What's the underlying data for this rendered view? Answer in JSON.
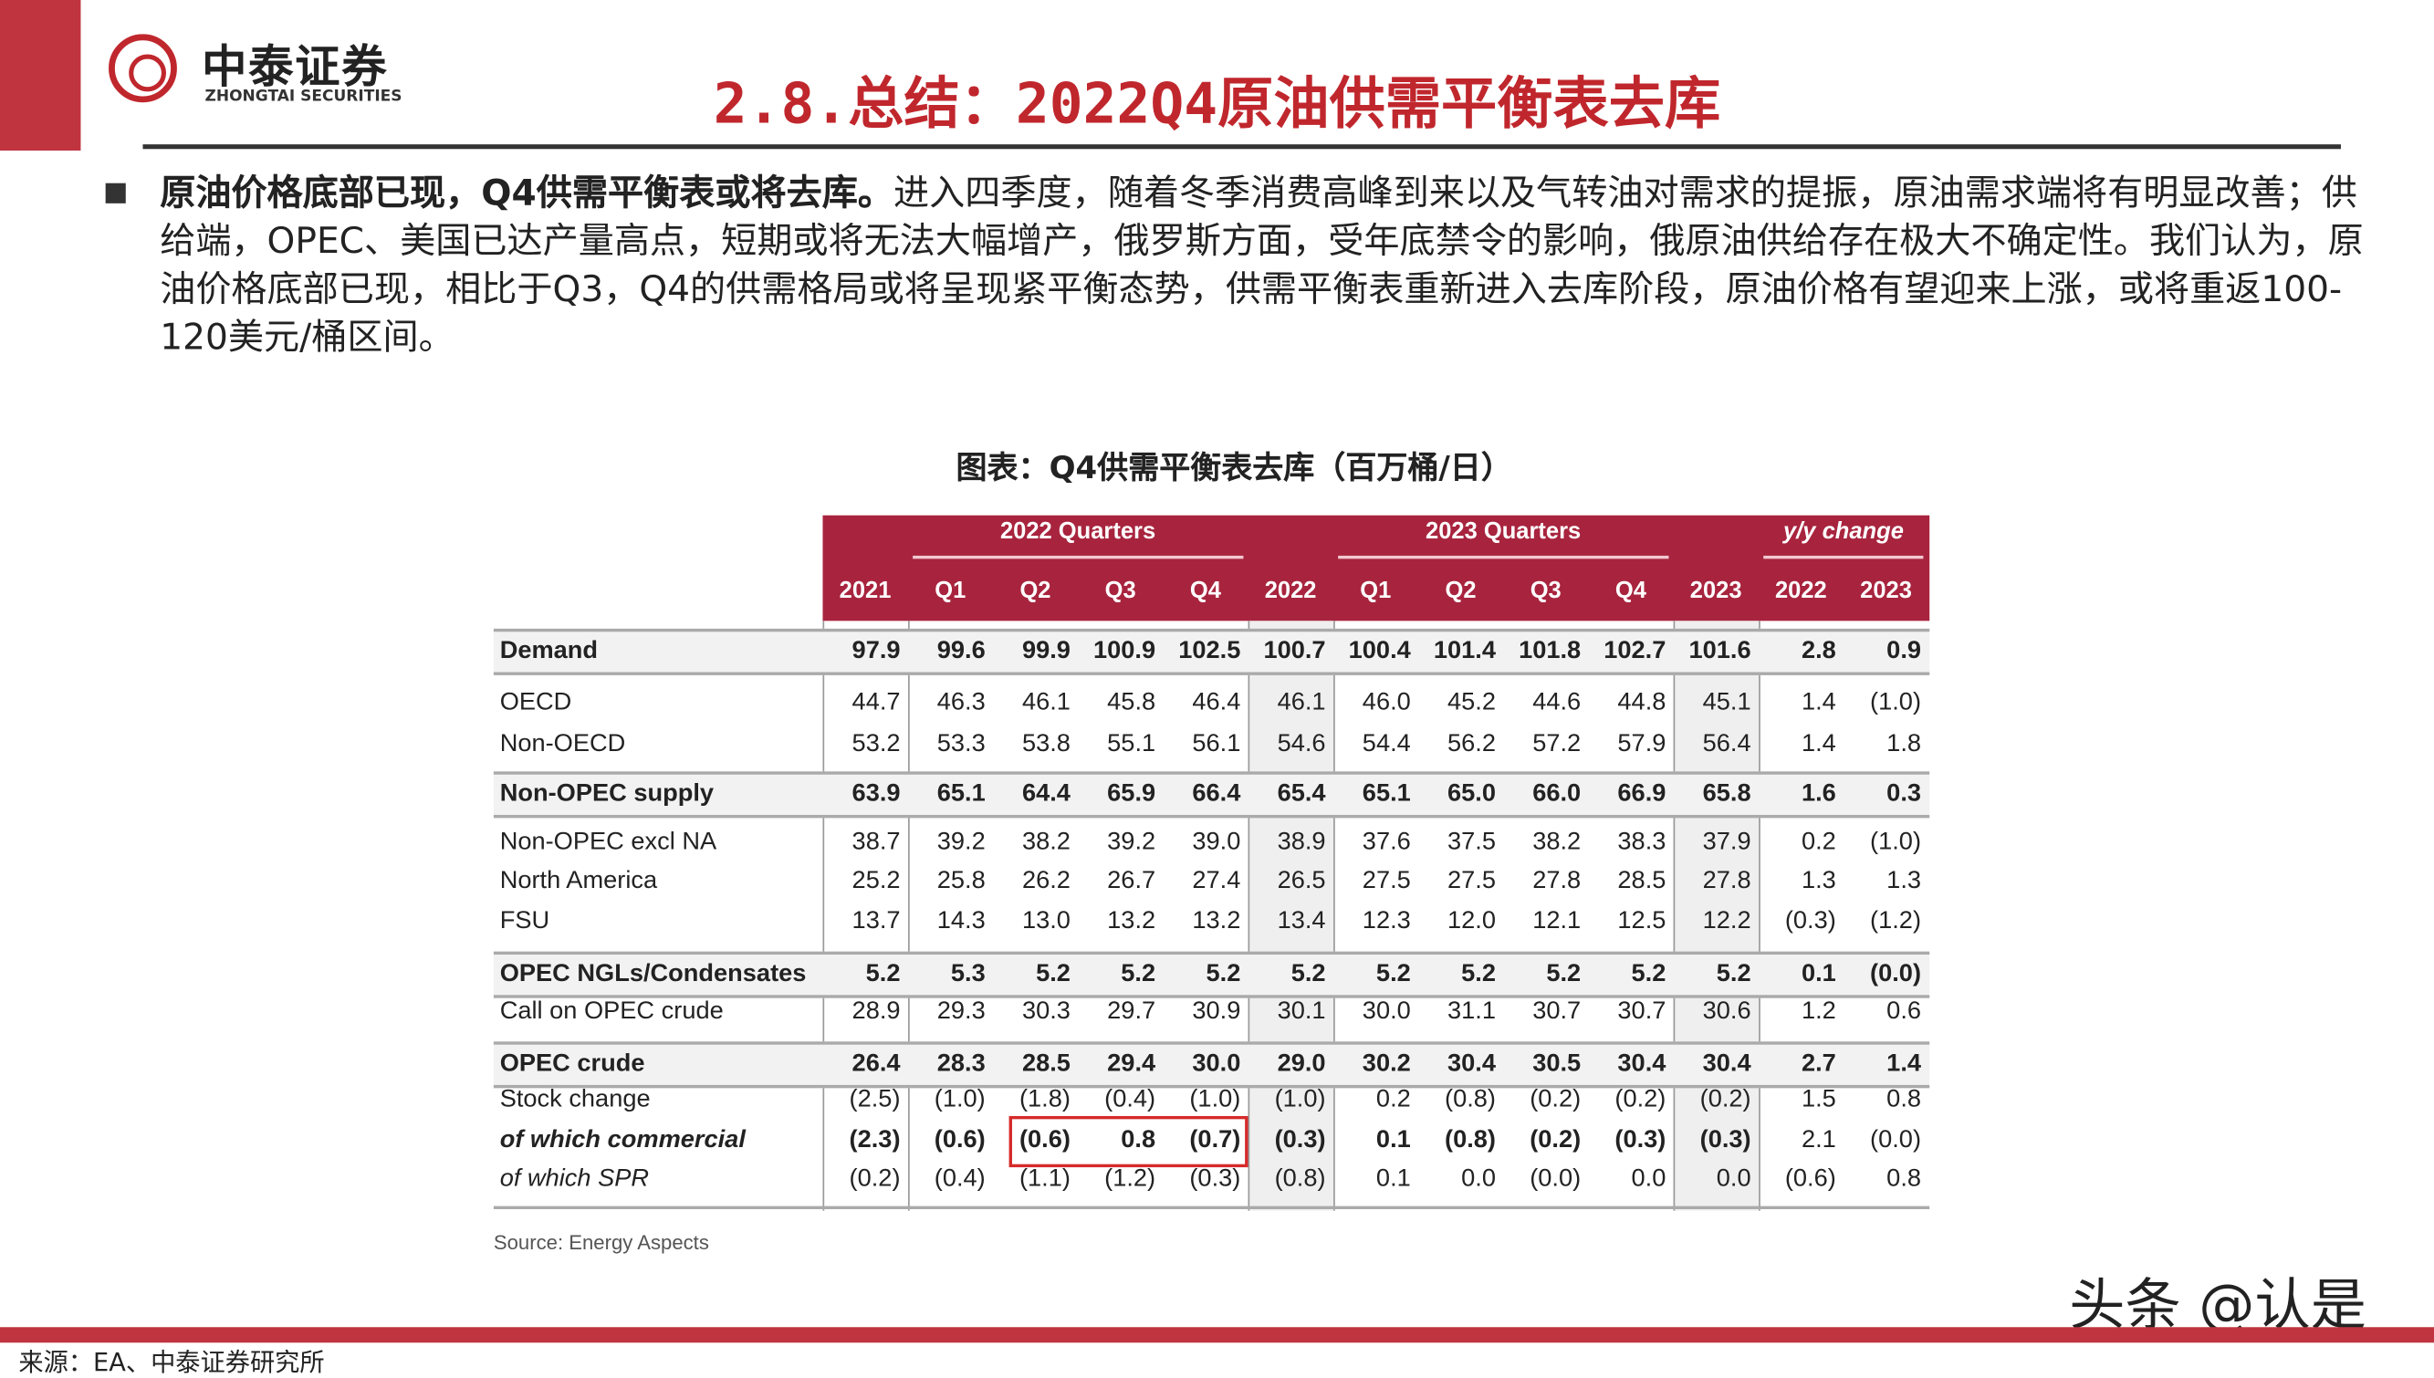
{
  "header": {
    "logo_cn": "中泰证券",
    "logo_en": "ZHONGTAI SECURITIES",
    "title": "2.8.总结：2022Q4原油供需平衡表去库"
  },
  "body": {
    "lead": "原油价格底部已现，Q4供需平衡表或将去库。",
    "text": "进入四季度，随着冬季消费高峰到来以及气转油对需求的提振，原油需求端将有明显改善；供给端，OPEC、美国已达产量高点，短期或将无法大幅增产，俄罗斯方面，受年底禁令的影响，俄原油供给存在极大不确定性。我们认为，原油价格底部已现，相比于Q3，Q4的供需格局或将呈现紧平衡态势，供需平衡表重新进入去库阶段，原油价格有望迎来上涨，或将重返100-120美元/桶区间。"
  },
  "chart_data": {
    "type": "table",
    "title": "图表：Q4供需平衡表去库（百万桶/日）",
    "groups": [
      "2022 Quarters",
      "2023 Quarters",
      "y/y change"
    ],
    "columns": [
      "2021",
      "Q1",
      "Q2",
      "Q3",
      "Q4",
      "2022",
      "Q1",
      "Q2",
      "Q3",
      "Q4",
      "2023",
      "2022",
      "2023"
    ],
    "rows": [
      {
        "label": "Demand",
        "style": "bold",
        "values": [
          "97.9",
          "99.6",
          "99.9",
          "100.9",
          "102.5",
          "100.7",
          "100.4",
          "101.4",
          "101.8",
          "102.7",
          "101.6",
          "2.8",
          "0.9"
        ]
      },
      {
        "label": "OECD",
        "values": [
          "44.7",
          "46.3",
          "46.1",
          "45.8",
          "46.4",
          "46.1",
          "46.0",
          "45.2",
          "44.6",
          "44.8",
          "45.1",
          "1.4",
          "(1.0)"
        ]
      },
      {
        "label": "Non-OECD",
        "values": [
          "53.2",
          "53.3",
          "53.8",
          "55.1",
          "56.1",
          "54.6",
          "54.4",
          "56.2",
          "57.2",
          "57.9",
          "56.4",
          "1.4",
          "1.8"
        ]
      },
      {
        "label": "Non-OPEC supply",
        "style": "bold",
        "values": [
          "63.9",
          "65.1",
          "64.4",
          "65.9",
          "66.4",
          "65.4",
          "65.1",
          "65.0",
          "66.0",
          "66.9",
          "65.8",
          "1.6",
          "0.3"
        ]
      },
      {
        "label": "Non-OPEC excl NA",
        "values": [
          "38.7",
          "39.2",
          "38.2",
          "39.2",
          "39.0",
          "38.9",
          "37.6",
          "37.5",
          "38.2",
          "38.3",
          "37.9",
          "0.2",
          "(1.0)"
        ]
      },
      {
        "label": "North America",
        "values": [
          "25.2",
          "25.8",
          "26.2",
          "26.7",
          "27.4",
          "26.5",
          "27.5",
          "27.5",
          "27.8",
          "28.5",
          "27.8",
          "1.3",
          "1.3"
        ]
      },
      {
        "label": "FSU",
        "values": [
          "13.7",
          "14.3",
          "13.0",
          "13.2",
          "13.2",
          "13.4",
          "12.3",
          "12.0",
          "12.1",
          "12.5",
          "12.2",
          "(0.3)",
          "(1.2)"
        ]
      },
      {
        "label": "OPEC NGLs/Condensates",
        "style": "bold",
        "values": [
          "5.2",
          "5.3",
          "5.2",
          "5.2",
          "5.2",
          "5.2",
          "5.2",
          "5.2",
          "5.2",
          "5.2",
          "5.2",
          "0.1",
          "(0.0)"
        ]
      },
      {
        "label": "Call on OPEC crude",
        "values": [
          "28.9",
          "29.3",
          "30.3",
          "29.7",
          "30.9",
          "30.1",
          "30.0",
          "31.1",
          "30.7",
          "30.7",
          "30.6",
          "1.2",
          "0.6"
        ]
      },
      {
        "label": "OPEC crude",
        "style": "bold",
        "values": [
          "26.4",
          "28.3",
          "28.5",
          "29.4",
          "30.0",
          "29.0",
          "30.2",
          "30.4",
          "30.5",
          "30.4",
          "30.4",
          "2.7",
          "1.4"
        ]
      },
      {
        "label": "Stock change",
        "values": [
          "(2.5)",
          "(1.0)",
          "(1.8)",
          "(0.4)",
          "(1.0)",
          "(1.0)",
          "0.2",
          "(0.8)",
          "(0.2)",
          "(0.2)",
          "(0.2)",
          "1.5",
          "0.8"
        ]
      },
      {
        "label": "of which commercial",
        "style": "bolditalic",
        "values": [
          "(2.3)",
          "(0.6)",
          "(0.6)",
          "0.8",
          "(0.7)",
          "(0.3)",
          "0.1",
          "(0.8)",
          "(0.2)",
          "(0.3)",
          "(0.3)",
          "2.1",
          "(0.0)"
        ]
      },
      {
        "label": "of which SPR",
        "style": "italic",
        "values": [
          "(0.2)",
          "(0.4)",
          "(1.1)",
          "(1.2)",
          "(0.3)",
          "(0.8)",
          "0.1",
          "0.0",
          "(0.0)",
          "0.0",
          "0.0",
          "(0.6)",
          "0.8"
        ]
      }
    ],
    "highlight": {
      "row": "of which commercial",
      "columns": [
        "Q2",
        "Q3",
        "Q4"
      ],
      "year": "2022",
      "color": "#d62a2a"
    },
    "source": "Source: Energy Aspects"
  },
  "colors": {
    "brand": "#c0272d",
    "header_band": "#a8243e"
  },
  "watermark": "头条 @认是",
  "footer": "来源：EA、中泰证券研究所"
}
